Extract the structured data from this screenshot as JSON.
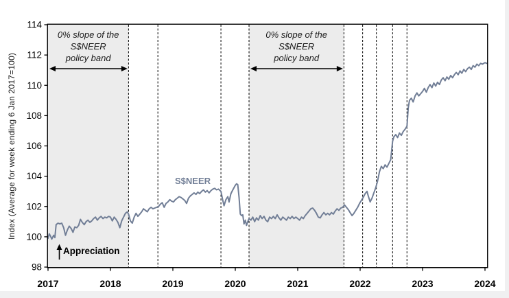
{
  "colors": {
    "line": "#717E96",
    "band_fill": "#ECECEC",
    "axis": "#000000",
    "annotation_text": "#1A1A1A",
    "window_edge": "#F0F0F1"
  },
  "chart_data": {
    "type": "line",
    "title": "",
    "xlabel": "",
    "ylabel": "Index (Average for week ending 6 Jan 2017=100)",
    "xlim": [
      2017,
      2024
    ],
    "ylim": [
      98,
      114
    ],
    "x_ticks": [
      2017,
      2018,
      2019,
      2020,
      2021,
      2022,
      2023,
      2024
    ],
    "y_ticks": [
      98,
      100,
      102,
      104,
      106,
      108,
      110,
      112,
      114
    ],
    "grid": false,
    "legend_position": "none",
    "dashed_vlines_years": [
      2018.29,
      2018.76,
      2019.77,
      2020.22,
      2021.74,
      2022.04,
      2022.26,
      2022.52,
      2022.75
    ],
    "policy_band_regions": [
      {
        "name": "zero-slope-2017-apr2018",
        "x_start": 2017.0,
        "x_end": 2018.29
      },
      {
        "name": "zero-slope-mar2020-oct2021",
        "x_start": 2020.22,
        "x_end": 2021.74
      }
    ],
    "annotations": {
      "region1": {
        "lines": [
          "0% slope of the",
          "S$NEER",
          "policy band"
        ]
      },
      "region2": {
        "lines": [
          "0% slope of the",
          "S$NEER",
          "policy band"
        ]
      },
      "series_label": "S$NEER",
      "appreciation_label": "Appreciation"
    },
    "series": [
      {
        "name": "S$NEER",
        "points": [
          [
            2017.0,
            99.9
          ],
          [
            2017.02,
            100.2
          ],
          [
            2017.04,
            100.05
          ],
          [
            2017.06,
            99.85
          ],
          [
            2017.09,
            100.1
          ],
          [
            2017.11,
            99.95
          ],
          [
            2017.13,
            100.8
          ],
          [
            2017.16,
            100.9
          ],
          [
            2017.19,
            100.85
          ],
          [
            2017.22,
            100.9
          ],
          [
            2017.25,
            100.6
          ],
          [
            2017.28,
            100.1
          ],
          [
            2017.31,
            100.45
          ],
          [
            2017.34,
            100.7
          ],
          [
            2017.37,
            100.55
          ],
          [
            2017.4,
            100.3
          ],
          [
            2017.43,
            100.65
          ],
          [
            2017.46,
            100.6
          ],
          [
            2017.49,
            100.75
          ],
          [
            2017.52,
            101.15
          ],
          [
            2017.55,
            100.95
          ],
          [
            2017.58,
            100.8
          ],
          [
            2017.61,
            101.0
          ],
          [
            2017.64,
            101.1
          ],
          [
            2017.67,
            100.95
          ],
          [
            2017.7,
            101.05
          ],
          [
            2017.73,
            101.2
          ],
          [
            2017.76,
            101.3
          ],
          [
            2017.79,
            101.1
          ],
          [
            2017.82,
            101.25
          ],
          [
            2017.85,
            101.35
          ],
          [
            2017.88,
            101.2
          ],
          [
            2017.91,
            101.3
          ],
          [
            2017.94,
            101.25
          ],
          [
            2017.97,
            101.35
          ],
          [
            2018.0,
            101.3
          ],
          [
            2018.03,
            101.05
          ],
          [
            2018.06,
            101.3
          ],
          [
            2018.09,
            101.15
          ],
          [
            2018.12,
            100.95
          ],
          [
            2018.15,
            100.6
          ],
          [
            2018.18,
            101.05
          ],
          [
            2018.21,
            101.3
          ],
          [
            2018.24,
            101.55
          ],
          [
            2018.27,
            101.65
          ],
          [
            2018.29,
            101.5
          ],
          [
            2018.32,
            101.05
          ],
          [
            2018.35,
            100.9
          ],
          [
            2018.38,
            101.3
          ],
          [
            2018.41,
            101.55
          ],
          [
            2018.44,
            101.35
          ],
          [
            2018.47,
            101.5
          ],
          [
            2018.5,
            101.65
          ],
          [
            2018.53,
            101.85
          ],
          [
            2018.56,
            101.75
          ],
          [
            2018.59,
            101.65
          ],
          [
            2018.62,
            101.85
          ],
          [
            2018.65,
            101.95
          ],
          [
            2018.68,
            101.85
          ],
          [
            2018.71,
            101.9
          ],
          [
            2018.74,
            101.95
          ],
          [
            2018.77,
            102.0
          ],
          [
            2018.8,
            102.15
          ],
          [
            2018.83,
            102.25
          ],
          [
            2018.86,
            101.95
          ],
          [
            2018.89,
            102.2
          ],
          [
            2018.92,
            102.3
          ],
          [
            2018.95,
            102.45
          ],
          [
            2018.98,
            102.35
          ],
          [
            2019.01,
            102.3
          ],
          [
            2019.04,
            102.45
          ],
          [
            2019.07,
            102.55
          ],
          [
            2019.1,
            102.65
          ],
          [
            2019.13,
            102.6
          ],
          [
            2019.16,
            102.5
          ],
          [
            2019.19,
            102.4
          ],
          [
            2019.22,
            102.2
          ],
          [
            2019.25,
            102.55
          ],
          [
            2019.28,
            102.7
          ],
          [
            2019.31,
            102.8
          ],
          [
            2019.34,
            102.9
          ],
          [
            2019.37,
            102.8
          ],
          [
            2019.4,
            102.95
          ],
          [
            2019.43,
            102.85
          ],
          [
            2019.46,
            103.0
          ],
          [
            2019.49,
            103.1
          ],
          [
            2019.52,
            102.95
          ],
          [
            2019.55,
            103.05
          ],
          [
            2019.58,
            102.9
          ],
          [
            2019.61,
            103.05
          ],
          [
            2019.64,
            103.15
          ],
          [
            2019.67,
            103.2
          ],
          [
            2019.7,
            103.1
          ],
          [
            2019.73,
            103.15
          ],
          [
            2019.77,
            103.0
          ],
          [
            2019.8,
            102.4
          ],
          [
            2019.82,
            102.05
          ],
          [
            2019.85,
            102.45
          ],
          [
            2019.88,
            102.65
          ],
          [
            2019.9,
            102.3
          ],
          [
            2019.93,
            102.85
          ],
          [
            2019.96,
            103.1
          ],
          [
            2020.0,
            103.4
          ],
          [
            2020.02,
            103.5
          ],
          [
            2020.04,
            103.45
          ],
          [
            2020.06,
            102.6
          ],
          [
            2020.08,
            101.5
          ],
          [
            2020.1,
            101.4
          ],
          [
            2020.12,
            101.45
          ],
          [
            2020.14,
            100.85
          ],
          [
            2020.16,
            101.1
          ],
          [
            2020.18,
            100.75
          ],
          [
            2020.2,
            101.0
          ],
          [
            2020.22,
            101.2
          ],
          [
            2020.25,
            101.1
          ],
          [
            2020.28,
            101.3
          ],
          [
            2020.31,
            101.0
          ],
          [
            2020.34,
            101.25
          ],
          [
            2020.37,
            101.1
          ],
          [
            2020.4,
            101.4
          ],
          [
            2020.43,
            101.2
          ],
          [
            2020.46,
            101.35
          ],
          [
            2020.49,
            101.1
          ],
          [
            2020.52,
            101.0
          ],
          [
            2020.55,
            101.3
          ],
          [
            2020.58,
            101.2
          ],
          [
            2020.61,
            101.35
          ],
          [
            2020.64,
            101.2
          ],
          [
            2020.67,
            101.45
          ],
          [
            2020.7,
            101.25
          ],
          [
            2020.73,
            101.1
          ],
          [
            2020.76,
            101.3
          ],
          [
            2020.79,
            101.2
          ],
          [
            2020.82,
            101.1
          ],
          [
            2020.85,
            101.3
          ],
          [
            2020.88,
            101.2
          ],
          [
            2020.91,
            101.35
          ],
          [
            2020.94,
            101.2
          ],
          [
            2020.97,
            101.3
          ],
          [
            2021.0,
            101.2
          ],
          [
            2021.03,
            101.1
          ],
          [
            2021.06,
            101.3
          ],
          [
            2021.09,
            101.2
          ],
          [
            2021.12,
            101.4
          ],
          [
            2021.15,
            101.55
          ],
          [
            2021.18,
            101.7
          ],
          [
            2021.21,
            101.85
          ],
          [
            2021.24,
            101.9
          ],
          [
            2021.27,
            101.75
          ],
          [
            2021.3,
            101.55
          ],
          [
            2021.33,
            101.3
          ],
          [
            2021.36,
            101.25
          ],
          [
            2021.39,
            101.45
          ],
          [
            2021.42,
            101.6
          ],
          [
            2021.45,
            101.45
          ],
          [
            2021.48,
            101.55
          ],
          [
            2021.51,
            101.45
          ],
          [
            2021.54,
            101.6
          ],
          [
            2021.57,
            101.5
          ],
          [
            2021.6,
            101.7
          ],
          [
            2021.63,
            101.85
          ],
          [
            2021.66,
            101.75
          ],
          [
            2021.69,
            101.9
          ],
          [
            2021.72,
            101.95
          ],
          [
            2021.75,
            102.1
          ],
          [
            2021.78,
            101.95
          ],
          [
            2021.81,
            101.8
          ],
          [
            2021.84,
            101.6
          ],
          [
            2021.87,
            101.4
          ],
          [
            2021.9,
            101.55
          ],
          [
            2021.93,
            101.75
          ],
          [
            2021.96,
            101.95
          ],
          [
            2021.99,
            102.2
          ],
          [
            2022.02,
            102.4
          ],
          [
            2022.05,
            102.6
          ],
          [
            2022.08,
            102.85
          ],
          [
            2022.11,
            103.0
          ],
          [
            2022.13,
            102.7
          ],
          [
            2022.16,
            102.3
          ],
          [
            2022.19,
            102.55
          ],
          [
            2022.22,
            102.9
          ],
          [
            2022.25,
            103.25
          ],
          [
            2022.28,
            103.7
          ],
          [
            2022.31,
            104.3
          ],
          [
            2022.34,
            104.65
          ],
          [
            2022.37,
            104.5
          ],
          [
            2022.4,
            104.75
          ],
          [
            2022.43,
            104.6
          ],
          [
            2022.46,
            104.85
          ],
          [
            2022.49,
            105.1
          ],
          [
            2022.52,
            106.3
          ],
          [
            2022.54,
            106.6
          ],
          [
            2022.57,
            106.75
          ],
          [
            2022.6,
            106.55
          ],
          [
            2022.63,
            106.85
          ],
          [
            2022.66,
            106.7
          ],
          [
            2022.69,
            106.95
          ],
          [
            2022.72,
            107.1
          ],
          [
            2022.75,
            107.3
          ],
          [
            2022.77,
            108.5
          ],
          [
            2022.79,
            109.0
          ],
          [
            2022.82,
            109.15
          ],
          [
            2022.85,
            108.9
          ],
          [
            2022.88,
            109.3
          ],
          [
            2022.91,
            109.5
          ],
          [
            2022.94,
            109.3
          ],
          [
            2022.97,
            109.45
          ],
          [
            2023.0,
            109.6
          ],
          [
            2023.03,
            109.8
          ],
          [
            2023.06,
            109.55
          ],
          [
            2023.09,
            109.85
          ],
          [
            2023.12,
            110.05
          ],
          [
            2023.15,
            109.85
          ],
          [
            2023.18,
            110.15
          ],
          [
            2023.21,
            109.95
          ],
          [
            2023.24,
            110.2
          ],
          [
            2023.27,
            110.05
          ],
          [
            2023.3,
            110.35
          ],
          [
            2023.33,
            110.5
          ],
          [
            2023.36,
            110.3
          ],
          [
            2023.39,
            110.55
          ],
          [
            2023.42,
            110.4
          ],
          [
            2023.45,
            110.65
          ],
          [
            2023.48,
            110.5
          ],
          [
            2023.51,
            110.7
          ],
          [
            2023.54,
            110.85
          ],
          [
            2023.57,
            110.7
          ],
          [
            2023.6,
            110.95
          ],
          [
            2023.63,
            110.8
          ],
          [
            2023.66,
            111.05
          ],
          [
            2023.69,
            110.9
          ],
          [
            2023.72,
            111.1
          ],
          [
            2023.75,
            111.2
          ],
          [
            2023.78,
            111.05
          ],
          [
            2023.81,
            111.3
          ],
          [
            2023.84,
            111.2
          ],
          [
            2023.87,
            111.4
          ],
          [
            2023.9,
            111.3
          ],
          [
            2023.93,
            111.45
          ],
          [
            2023.96,
            111.4
          ],
          [
            2024.0,
            111.5
          ],
          [
            2024.03,
            111.45
          ]
        ]
      }
    ]
  }
}
